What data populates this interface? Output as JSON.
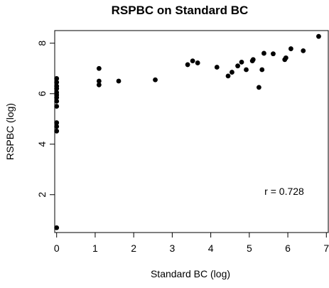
{
  "chart_data": {
    "type": "scatter",
    "title": "RSPBC on Standard BC",
    "xlabel": "Standard BC (log)",
    "ylabel": "RSPBC (log)",
    "xlim": [
      -0.05,
      7.05
    ],
    "ylim": [
      0.5,
      8.5
    ],
    "x_ticks": [
      "0",
      "1",
      "2",
      "3",
      "4",
      "5",
      "6",
      "7"
    ],
    "y_ticks": [
      "2",
      "4",
      "6",
      "8"
    ],
    "grid": false,
    "legend": "none",
    "marker_color": "#000000",
    "annotation": "r =  0.728",
    "points": [
      {
        "x": 0,
        "y": 6.6
      },
      {
        "x": 0,
        "y": 6.45
      },
      {
        "x": 0,
        "y": 6.3
      },
      {
        "x": 0,
        "y": 6.2
      },
      {
        "x": 0,
        "y": 6.05
      },
      {
        "x": 0,
        "y": 5.95
      },
      {
        "x": 0,
        "y": 5.85
      },
      {
        "x": 0,
        "y": 5.7
      },
      {
        "x": 0,
        "y": 5.5
      },
      {
        "x": 0,
        "y": 4.85
      },
      {
        "x": 0,
        "y": 4.7
      },
      {
        "x": 0,
        "y": 4.52
      },
      {
        "x": 0,
        "y": 0.69
      },
      {
        "x": 1.1,
        "y": 7.0
      },
      {
        "x": 1.1,
        "y": 6.5
      },
      {
        "x": 1.1,
        "y": 6.35
      },
      {
        "x": 1.61,
        "y": 6.5
      },
      {
        "x": 2.56,
        "y": 6.55
      },
      {
        "x": 3.4,
        "y": 7.15
      },
      {
        "x": 3.53,
        "y": 7.3
      },
      {
        "x": 3.66,
        "y": 7.22
      },
      {
        "x": 4.16,
        "y": 7.05
      },
      {
        "x": 4.45,
        "y": 6.7
      },
      {
        "x": 4.55,
        "y": 6.85
      },
      {
        "x": 4.7,
        "y": 7.1
      },
      {
        "x": 4.8,
        "y": 7.25
      },
      {
        "x": 4.92,
        "y": 6.95
      },
      {
        "x": 5.08,
        "y": 7.3
      },
      {
        "x": 5.1,
        "y": 7.35
      },
      {
        "x": 5.25,
        "y": 6.25
      },
      {
        "x": 5.33,
        "y": 6.95
      },
      {
        "x": 5.38,
        "y": 7.6
      },
      {
        "x": 5.62,
        "y": 7.58
      },
      {
        "x": 5.92,
        "y": 7.35
      },
      {
        "x": 5.95,
        "y": 7.42
      },
      {
        "x": 6.08,
        "y": 7.78
      },
      {
        "x": 6.4,
        "y": 7.7
      },
      {
        "x": 6.8,
        "y": 8.27
      }
    ]
  }
}
